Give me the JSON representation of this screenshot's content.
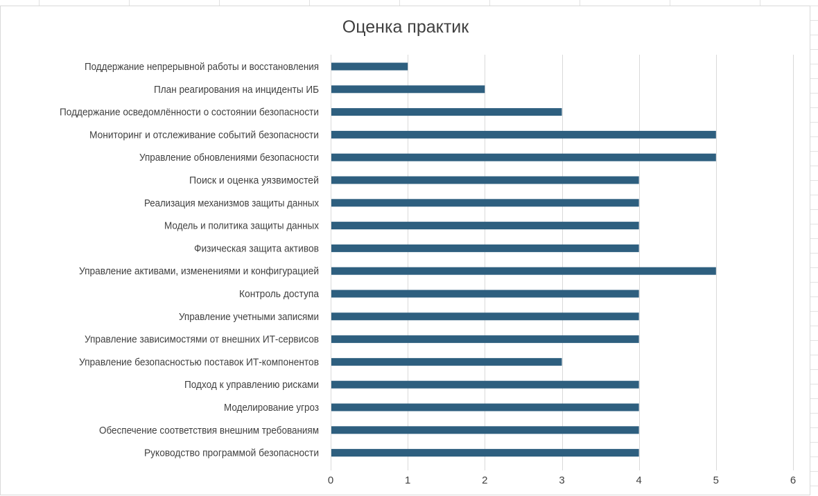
{
  "chart_data": {
    "type": "bar",
    "orientation": "horizontal",
    "title": "Оценка практик",
    "categories": [
      "Поддержание непрерывной работы и восстановления",
      "План реагирования на инциденты ИБ",
      "Поддержание осведомлённости о состоянии безопасности",
      "Мониторинг и отслеживание событий безопасности",
      "Управление обновлениями безопасности",
      "Поиск и оценка уязвимостей",
      "Реализация механизмов защиты данных",
      "Модель и политика защиты данных",
      "Физическая защита активов",
      "Управление активами, изменениями и конфигурацией",
      "Контроль доступа",
      "Управление учетными записями ",
      "Управление зависимостями от внешних ИТ-сервисов",
      "Управление безопасностью поставок ИТ-компонентов",
      "Подход к управлению рисками",
      "Моделирование угроз",
      "Обеспечение соответствия внешним требованиям",
      "Руководство программой безопасности"
    ],
    "values": [
      1,
      2,
      3,
      5,
      5,
      4,
      4,
      4,
      4,
      5,
      4,
      4,
      4,
      3,
      4,
      4,
      4,
      4
    ],
    "xlim": [
      0,
      6
    ],
    "xticks": [
      "0",
      "1",
      "2",
      "3",
      "4",
      "5",
      "6"
    ],
    "grid": "vertical",
    "bar_color": "#2e5f7f",
    "gridline_color": "#d9d9d9",
    "legend": "none"
  }
}
